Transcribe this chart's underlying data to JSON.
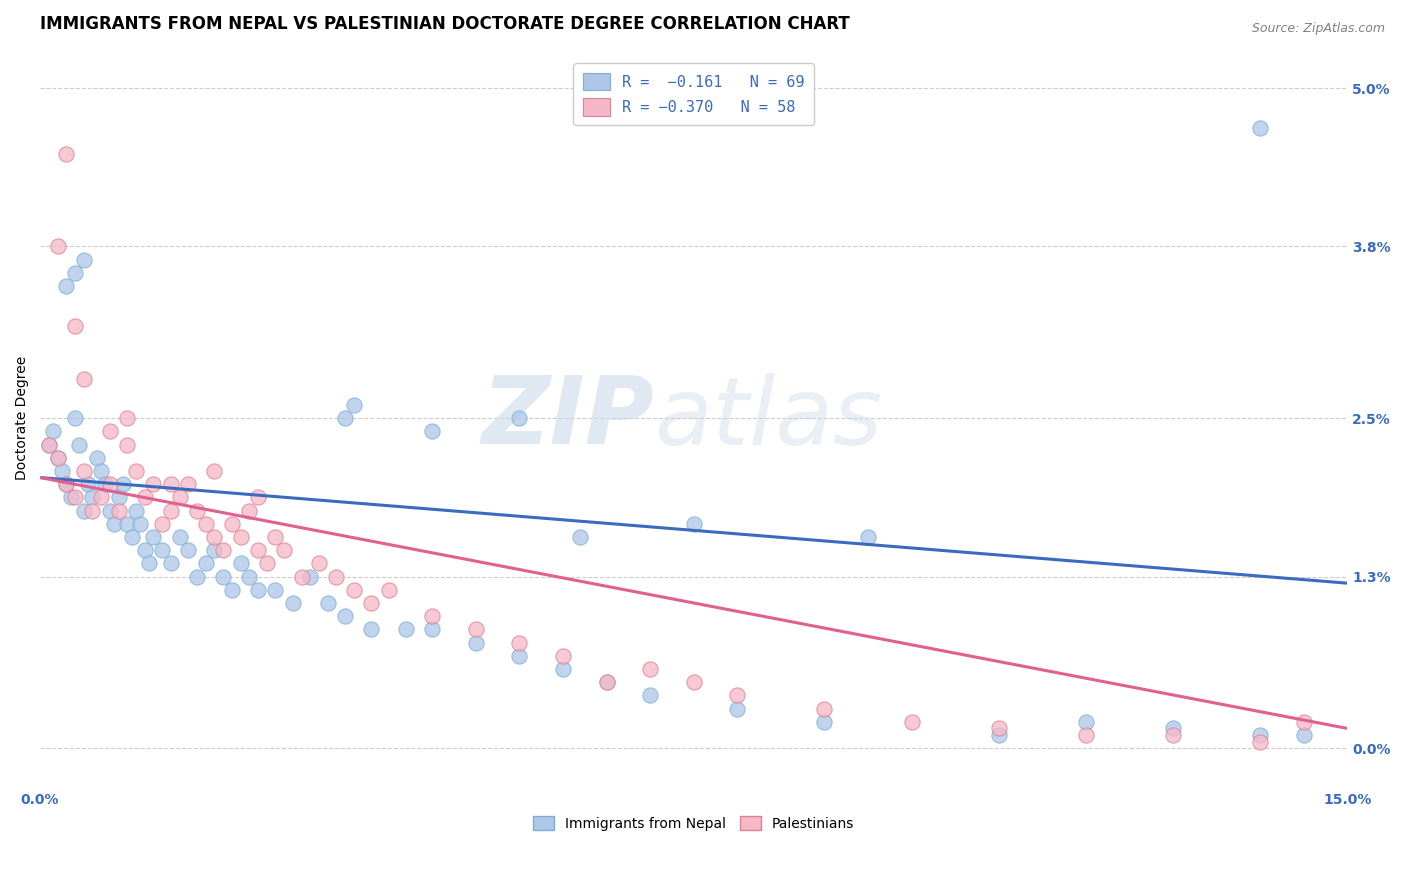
{
  "title": "IMMIGRANTS FROM NEPAL VS PALESTINIAN DOCTORATE DEGREE CORRELATION CHART",
  "source": "Source: ZipAtlas.com",
  "ylabel_label": "Doctorate Degree",
  "ylabel_vals": [
    0.0,
    1.3,
    2.5,
    3.8,
    5.0
  ],
  "xlim": [
    0.0,
    15.0
  ],
  "ylim": [
    -0.3,
    5.3
  ],
  "watermark_zip": "ZIP",
  "watermark_atlas": "atlas",
  "nepal_scatter_x": [
    0.1,
    0.15,
    0.2,
    0.25,
    0.3,
    0.35,
    0.4,
    0.45,
    0.5,
    0.55,
    0.6,
    0.65,
    0.7,
    0.75,
    0.8,
    0.85,
    0.9,
    0.95,
    1.0,
    1.05,
    1.1,
    1.15,
    1.2,
    1.25,
    1.3,
    1.4,
    1.5,
    1.6,
    1.7,
    1.8,
    1.9,
    2.0,
    2.1,
    2.2,
    2.3,
    2.4,
    2.5,
    2.7,
    2.9,
    3.1,
    3.3,
    3.5,
    3.8,
    4.2,
    4.5,
    5.0,
    5.5,
    6.0,
    6.5,
    7.0,
    8.0,
    9.0,
    11.0,
    12.0,
    13.0,
    14.0,
    14.5,
    0.3,
    0.4,
    0.5,
    3.5,
    3.6,
    4.5,
    5.5,
    6.2,
    7.5,
    9.5,
    14.0
  ],
  "nepal_scatter_y": [
    2.3,
    2.4,
    2.2,
    2.1,
    2.0,
    1.9,
    2.5,
    2.3,
    1.8,
    2.0,
    1.9,
    2.2,
    2.1,
    2.0,
    1.8,
    1.7,
    1.9,
    2.0,
    1.7,
    1.6,
    1.8,
    1.7,
    1.5,
    1.4,
    1.6,
    1.5,
    1.4,
    1.6,
    1.5,
    1.3,
    1.4,
    1.5,
    1.3,
    1.2,
    1.4,
    1.3,
    1.2,
    1.2,
    1.1,
    1.3,
    1.1,
    1.0,
    0.9,
    0.9,
    0.9,
    0.8,
    0.7,
    0.6,
    0.5,
    0.4,
    0.3,
    0.2,
    0.1,
    0.2,
    0.15,
    0.1,
    0.1,
    3.5,
    3.6,
    3.7,
    2.5,
    2.6,
    2.4,
    2.5,
    1.6,
    1.7,
    1.6,
    4.7
  ],
  "pal_scatter_x": [
    0.1,
    0.2,
    0.3,
    0.4,
    0.5,
    0.6,
    0.7,
    0.8,
    0.9,
    1.0,
    1.1,
    1.2,
    1.3,
    1.4,
    1.5,
    1.6,
    1.7,
    1.8,
    1.9,
    2.0,
    2.1,
    2.2,
    2.3,
    2.4,
    2.5,
    2.6,
    2.7,
    2.8,
    3.0,
    3.2,
    3.4,
    3.6,
    3.8,
    4.0,
    4.5,
    5.0,
    5.5,
    6.0,
    6.5,
    7.0,
    7.5,
    8.0,
    9.0,
    10.0,
    11.0,
    12.0,
    13.0,
    14.0,
    14.5,
    0.2,
    0.3,
    0.4,
    0.5,
    0.8,
    1.0,
    1.5,
    2.0,
    2.5
  ],
  "pal_scatter_y": [
    2.3,
    2.2,
    2.0,
    1.9,
    2.1,
    1.8,
    1.9,
    2.0,
    1.8,
    2.3,
    2.1,
    1.9,
    2.0,
    1.7,
    1.8,
    1.9,
    2.0,
    1.8,
    1.7,
    1.6,
    1.5,
    1.7,
    1.6,
    1.8,
    1.5,
    1.4,
    1.6,
    1.5,
    1.3,
    1.4,
    1.3,
    1.2,
    1.1,
    1.2,
    1.0,
    0.9,
    0.8,
    0.7,
    0.5,
    0.6,
    0.5,
    0.4,
    0.3,
    0.2,
    0.15,
    0.1,
    0.1,
    0.05,
    0.2,
    3.8,
    4.5,
    3.2,
    2.8,
    2.4,
    2.5,
    2.0,
    2.1,
    1.9
  ],
  "nepal_line_x": [
    0.0,
    15.0
  ],
  "nepal_line_y": [
    2.05,
    1.25
  ],
  "pal_line_x": [
    0.0,
    15.0
  ],
  "pal_line_y": [
    2.05,
    0.15
  ],
  "nepal_color": "#aec6e8",
  "nepal_edge_color": "#7bafd4",
  "pal_color": "#f4b8c8",
  "pal_edge_color": "#e08090",
  "nepal_line_color": "#3a6bbf",
  "pal_line_color": "#e06090",
  "bg_color": "#ffffff",
  "grid_color": "#cccccc",
  "title_fontsize": 12,
  "axis_fontsize": 10,
  "tick_fontsize": 10,
  "scatter_size": 120,
  "scatter_alpha": 0.75,
  "line_width": 2.2
}
